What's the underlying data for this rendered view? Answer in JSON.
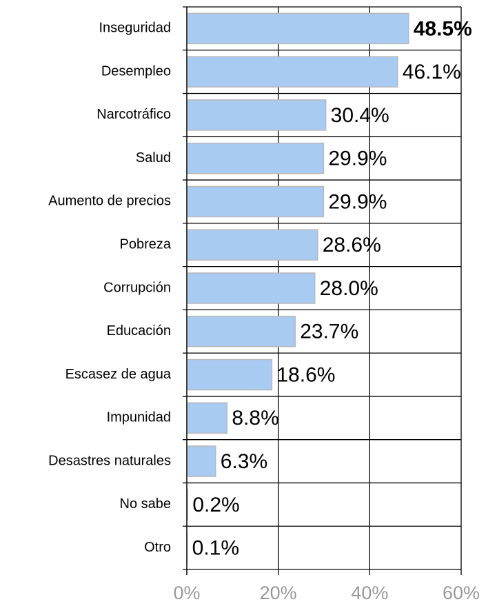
{
  "chart_data": {
    "type": "bar",
    "orientation": "horizontal",
    "categories": [
      "Inseguridad",
      "Desempleo",
      "Narcotráfico",
      "Salud",
      "Aumento de precios",
      "Pobreza",
      "Corrupción",
      "Educación",
      "Escasez de agua",
      "Impunidad",
      "Desastres naturales",
      "No sabe",
      "Otro"
    ],
    "values": [
      48.5,
      46.1,
      30.4,
      29.9,
      29.9,
      28.6,
      28.0,
      23.7,
      18.6,
      8.8,
      6.3,
      0.2,
      0.1
    ],
    "value_labels": [
      "48.5%",
      "46.1%",
      "30.4%",
      "29.9%",
      "29.9%",
      "28.6%",
      "28.0%",
      "23.7%",
      "18.6%",
      "8.8%",
      "6.3%",
      "0.2%",
      "0.1%"
    ],
    "color": "#a9cbf2",
    "xlim": [
      0,
      60
    ],
    "xticks": [
      {
        "value": 0,
        "label": "0%"
      },
      {
        "value": 20,
        "label": "20%"
      },
      {
        "value": 40,
        "label": "40%"
      },
      {
        "value": 60,
        "label": "60%"
      }
    ],
    "grid": true
  }
}
